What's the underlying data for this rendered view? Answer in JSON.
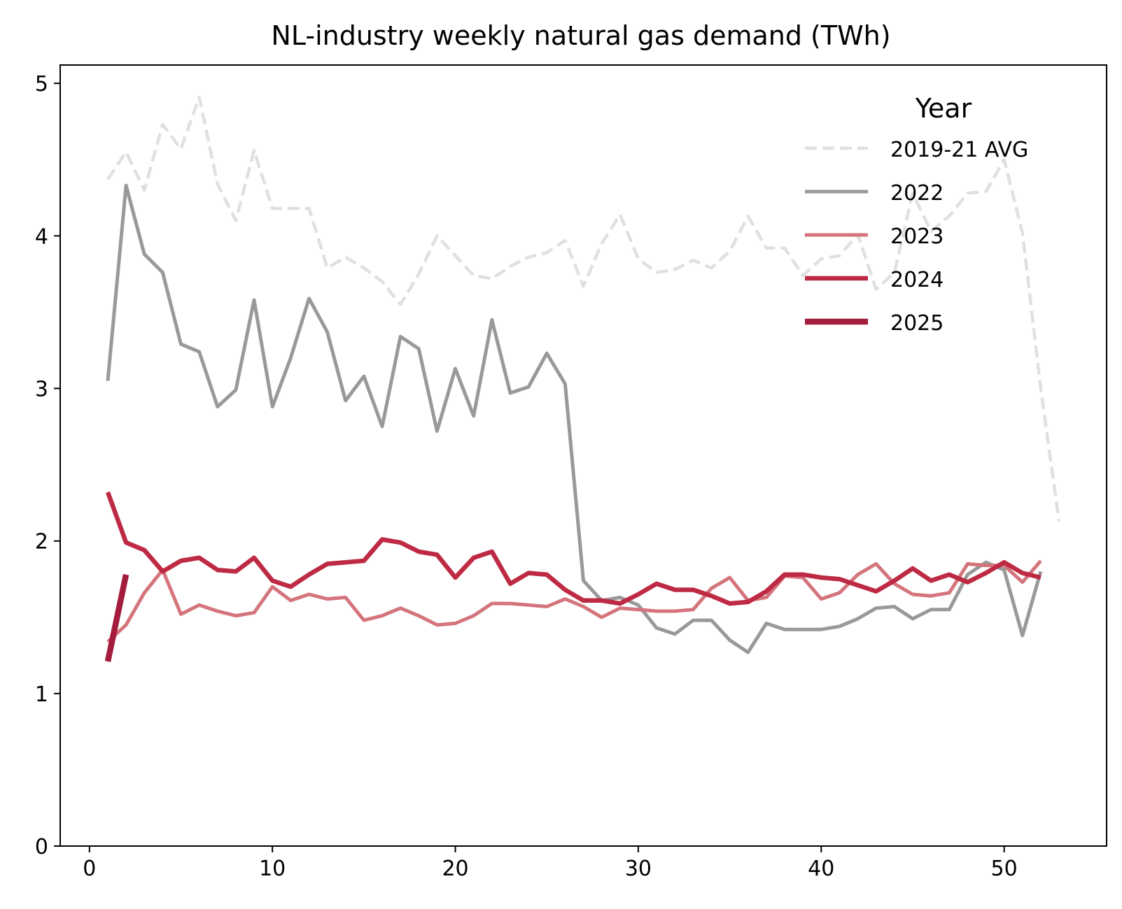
{
  "chart_data": {
    "type": "line",
    "title": "NL-industry weekly natural gas demand (TWh)",
    "xlabel": "",
    "ylabel": "",
    "xlim": [
      -1.6,
      55.6
    ],
    "ylim": [
      0,
      5.12
    ],
    "xticks": [
      0,
      10,
      20,
      30,
      40,
      50
    ],
    "yticks": [
      0,
      1,
      2,
      3,
      4,
      5
    ],
    "grid": false,
    "legend": {
      "title": "Year",
      "placement": "top-right"
    },
    "series": [
      {
        "name": "2019-21 AVG",
        "color": "#e0e0e0",
        "dashed": true,
        "x": [
          1,
          2,
          3,
          4,
          5,
          6,
          7,
          8,
          9,
          10,
          11,
          12,
          13,
          14,
          15,
          16,
          17,
          18,
          19,
          20,
          21,
          22,
          23,
          24,
          25,
          26,
          27,
          28,
          29,
          30,
          31,
          32,
          33,
          34,
          35,
          36,
          37,
          38,
          39,
          40,
          41,
          42,
          43,
          44,
          45,
          46,
          47,
          48,
          49,
          50,
          51,
          52,
          53
        ],
        "values": [
          4.37,
          4.55,
          4.3,
          4.73,
          4.57,
          4.91,
          4.34,
          4.1,
          4.56,
          4.18,
          4.18,
          4.18,
          3.79,
          3.86,
          3.79,
          3.7,
          3.55,
          3.75,
          4.0,
          3.87,
          3.74,
          3.72,
          3.8,
          3.86,
          3.89,
          3.97,
          3.67,
          3.95,
          4.14,
          3.85,
          3.76,
          3.78,
          3.84,
          3.79,
          3.9,
          4.13,
          3.92,
          3.92,
          3.74,
          3.85,
          3.87,
          4.01,
          3.65,
          3.76,
          4.28,
          4.03,
          4.13,
          4.28,
          4.29,
          4.5,
          4.02,
          3.0,
          2.13
        ]
      },
      {
        "name": "2022",
        "color": "#999999",
        "width": 5,
        "x": [
          1,
          2,
          3,
          4,
          5,
          6,
          7,
          8,
          9,
          10,
          11,
          12,
          13,
          14,
          15,
          16,
          17,
          18,
          19,
          20,
          21,
          22,
          23,
          24,
          25,
          26,
          27,
          28,
          29,
          30,
          31,
          32,
          33,
          34,
          35,
          36,
          37,
          38,
          39,
          40,
          41,
          42,
          43,
          44,
          45,
          46,
          47,
          48,
          49,
          50,
          51,
          52
        ],
        "values": [
          3.05,
          4.33,
          3.88,
          3.76,
          3.29,
          3.24,
          2.88,
          2.99,
          3.58,
          2.88,
          3.2,
          3.59,
          3.37,
          2.92,
          3.08,
          2.75,
          3.34,
          3.26,
          2.72,
          3.13,
          2.82,
          3.45,
          2.97,
          3.01,
          3.23,
          3.03,
          1.74,
          1.61,
          1.63,
          1.58,
          1.43,
          1.39,
          1.48,
          1.48,
          1.35,
          1.27,
          1.46,
          1.42,
          1.42,
          1.42,
          1.44,
          1.49,
          1.56,
          1.57,
          1.49,
          1.55,
          1.55,
          1.78,
          1.86,
          1.81,
          1.38,
          1.8
        ]
      },
      {
        "name": "2023",
        "color": "#d4747c",
        "width": 5,
        "x": [
          1,
          2,
          3,
          4,
          5,
          6,
          7,
          8,
          9,
          10,
          11,
          12,
          13,
          14,
          15,
          16,
          17,
          18,
          19,
          20,
          21,
          22,
          23,
          24,
          25,
          26,
          27,
          28,
          29,
          30,
          31,
          32,
          33,
          34,
          35,
          36,
          37,
          38,
          39,
          40,
          41,
          42,
          43,
          44,
          45,
          46,
          47,
          48,
          49,
          50,
          51,
          52
        ],
        "values": [
          1.34,
          1.45,
          1.66,
          1.81,
          1.52,
          1.58,
          1.54,
          1.51,
          1.53,
          1.7,
          1.61,
          1.65,
          1.62,
          1.63,
          1.48,
          1.51,
          1.56,
          1.51,
          1.45,
          1.46,
          1.51,
          1.59,
          1.59,
          1.58,
          1.57,
          1.62,
          1.57,
          1.5,
          1.56,
          1.55,
          1.54,
          1.54,
          1.55,
          1.69,
          1.76,
          1.61,
          1.63,
          1.77,
          1.76,
          1.62,
          1.66,
          1.78,
          1.85,
          1.72,
          1.65,
          1.64,
          1.66,
          1.85,
          1.84,
          1.84,
          1.73,
          1.87
        ]
      },
      {
        "name": "2024",
        "color": "#be2a44",
        "width": 6.5,
        "x": [
          1,
          2,
          3,
          4,
          5,
          6,
          7,
          8,
          9,
          10,
          11,
          12,
          13,
          14,
          15,
          16,
          17,
          18,
          19,
          20,
          21,
          22,
          23,
          24,
          25,
          26,
          27,
          28,
          29,
          30,
          31,
          32,
          33,
          34,
          35,
          36,
          37,
          38,
          39,
          40,
          41,
          42,
          43,
          44,
          45,
          46,
          47,
          48,
          49,
          50,
          51,
          52
        ],
        "values": [
          2.32,
          1.99,
          1.94,
          1.8,
          1.87,
          1.89,
          1.81,
          1.8,
          1.89,
          1.74,
          1.7,
          1.78,
          1.85,
          1.86,
          1.87,
          2.01,
          1.99,
          1.93,
          1.91,
          1.76,
          1.89,
          1.93,
          1.72,
          1.79,
          1.78,
          1.68,
          1.61,
          1.61,
          1.59,
          1.65,
          1.72,
          1.68,
          1.68,
          1.64,
          1.59,
          1.6,
          1.67,
          1.78,
          1.78,
          1.76,
          1.75,
          1.71,
          1.67,
          1.74,
          1.82,
          1.74,
          1.78,
          1.73,
          1.79,
          1.86,
          1.79,
          1.76
        ]
      },
      {
        "name": "2025",
        "color": "#a31c3c",
        "width": 8.5,
        "x": [
          1,
          2
        ],
        "values": [
          1.21,
          1.78
        ]
      }
    ]
  }
}
